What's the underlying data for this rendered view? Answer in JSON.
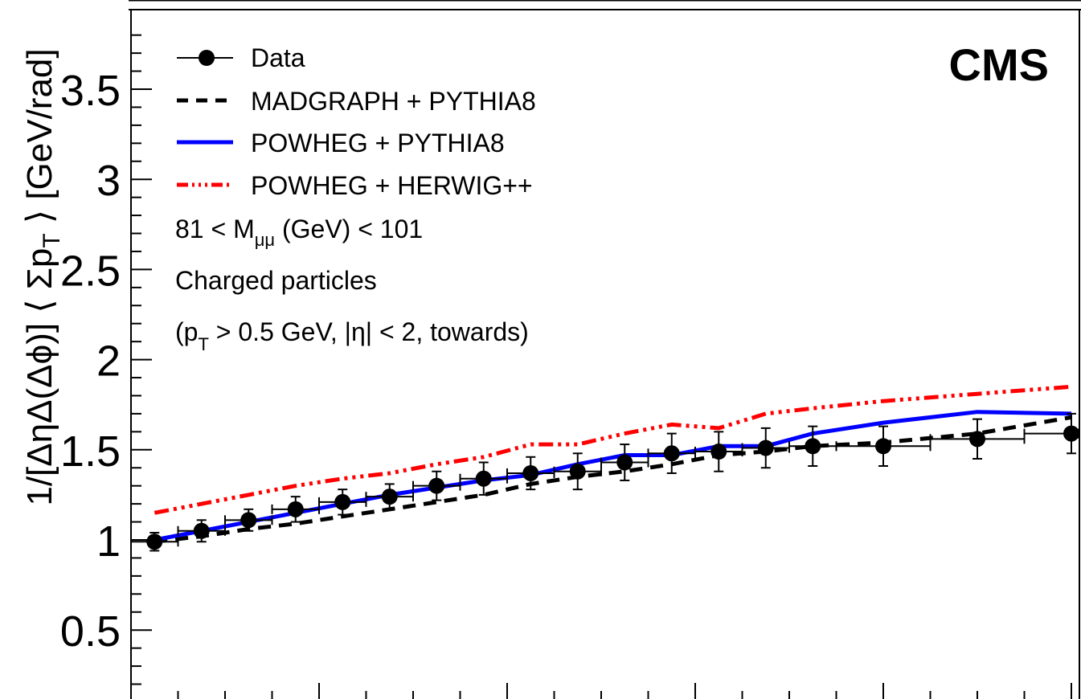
{
  "chart_data": {
    "type": "line",
    "experiment_label": "CMS",
    "ylabel_parts": {
      "pre": "1/[ΔηΔ(Δϕ)] ⟨ Σp",
      "sub": "T",
      "post": " ⟩ [GeV/rad]"
    },
    "xlabel": "",
    "ylim": [
      0.05,
      3.9
    ],
    "y_ticks": [
      0.5,
      1,
      1.5,
      2,
      2.5,
      3,
      3.5
    ],
    "y_tick_labels": [
      "0.5",
      "1",
      "1.5",
      "2",
      "2.5",
      "3",
      "3.5"
    ],
    "grid": false,
    "legend_position": "top-left",
    "legend": [
      {
        "label": "Data",
        "style": "marker",
        "color": "#000000"
      },
      {
        "label": "MADGRAPH + PYTHIA8",
        "style": "dashed",
        "color": "#000000"
      },
      {
        "label": "POWHEG + PYTHIA8",
        "style": "solid",
        "color": "#0000ff"
      },
      {
        "label": "POWHEG + HERWIG++",
        "style": "dashdot",
        "color": "#ff0000"
      }
    ],
    "annotations": {
      "mass_pre": "81 < M",
      "mass_sub": "μμ",
      "mass_post": " (GeV) < 101",
      "line2": "Charged particles",
      "line3_pre": "(p",
      "line3_sub": "T",
      "line3_post": " > 0.5 GeV, |η| < 2, towards)"
    },
    "data": {
      "name": "Data",
      "x": [
        1,
        3,
        5,
        7,
        9,
        11,
        13,
        15,
        17,
        19,
        21,
        23,
        25,
        27,
        29,
        32,
        36,
        40
      ],
      "y": [
        0.99,
        1.05,
        1.11,
        1.17,
        1.21,
        1.24,
        1.3,
        1.34,
        1.37,
        1.38,
        1.43,
        1.48,
        1.49,
        1.51,
        1.52,
        1.52,
        1.56,
        1.59
      ],
      "yerr": [
        0.05,
        0.06,
        0.06,
        0.07,
        0.07,
        0.07,
        0.08,
        0.09,
        0.09,
        0.1,
        0.1,
        0.11,
        0.11,
        0.11,
        0.11,
        0.11,
        0.11,
        0.11
      ],
      "xerr": [
        1,
        1,
        1,
        1,
        1,
        1,
        1,
        1,
        1,
        1,
        1,
        1,
        1,
        1,
        1,
        2,
        2,
        2
      ]
    },
    "series": [
      {
        "name": "MADGRAPH + PYTHIA8",
        "style": "dashed",
        "color": "#000000",
        "x": [
          1,
          3,
          5,
          7,
          9,
          11,
          13,
          15,
          17,
          19,
          21,
          23,
          25,
          27,
          29,
          32,
          36,
          40
        ],
        "y": [
          0.99,
          1.02,
          1.06,
          1.09,
          1.13,
          1.17,
          1.21,
          1.25,
          1.31,
          1.35,
          1.38,
          1.42,
          1.47,
          1.49,
          1.52,
          1.54,
          1.59,
          1.68
        ]
      },
      {
        "name": "POWHEG + PYTHIA8",
        "style": "solid",
        "color": "#0000ff",
        "x": [
          1,
          3,
          5,
          7,
          9,
          11,
          13,
          15,
          17,
          19,
          21,
          23,
          25,
          27,
          29,
          32,
          36,
          40
        ],
        "y": [
          1.0,
          1.05,
          1.1,
          1.15,
          1.2,
          1.25,
          1.29,
          1.33,
          1.36,
          1.42,
          1.47,
          1.47,
          1.52,
          1.52,
          1.59,
          1.65,
          1.71,
          1.7
        ]
      },
      {
        "name": "POWHEG + HERWIG++",
        "style": "dashdot",
        "color": "#ff0000",
        "x": [
          1,
          3,
          5,
          7,
          9,
          11,
          13,
          15,
          17,
          19,
          21,
          23,
          25,
          27,
          29,
          32,
          36,
          40
        ],
        "y": [
          1.15,
          1.2,
          1.25,
          1.3,
          1.34,
          1.37,
          1.42,
          1.46,
          1.53,
          1.53,
          1.59,
          1.64,
          1.62,
          1.7,
          1.73,
          1.77,
          1.81,
          1.85
        ]
      }
    ]
  }
}
